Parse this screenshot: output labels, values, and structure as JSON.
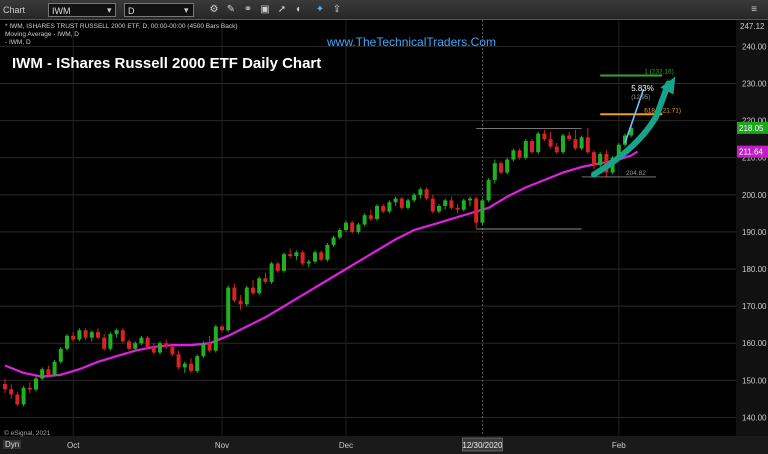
{
  "toolbar": {
    "app_label": "Chart",
    "symbol": "IWM",
    "interval": "D",
    "icons": [
      "gear-icon",
      "pencil-icon",
      "link-icon",
      "image-icon",
      "arrow-icon",
      "hide-icon",
      "twitter-icon",
      "share-icon",
      "menu-icon"
    ]
  },
  "chart_info": {
    "line1": "* IWM, ISHARES TRUST RUSSELL 2000 ETF, D, 00:00-00:00 (4500 Bars Back)",
    "line2": "Moving Average - IWM, D",
    "line3": "- IWM, D"
  },
  "headline": "IWM - IShares Russell 2000 ETF Daily Chart",
  "website": "www.TheTechnicalTraders.Com",
  "footer": {
    "copyright": "© eSignal, 2021",
    "dyn_label": "Dyn"
  },
  "colors": {
    "background": "#000000",
    "up_candle": "#22b022",
    "down_candle": "#d42424",
    "moving_average": "#e020e0",
    "projection_arrow": "#17a48a",
    "fib_1": "#2fa82f",
    "fib_618": "#f39c12",
    "current_price_label": "#1fa51f",
    "ma_price_label": "#c21ec2"
  },
  "chart_data": {
    "type": "candlestick",
    "y_axis": {
      "min": 135,
      "max": 247.12,
      "ticks": [
        140,
        150,
        160,
        170,
        180,
        190,
        200,
        210,
        220,
        230,
        240
      ],
      "top_label": "247.12"
    },
    "x_axis": {
      "labels": [
        {
          "label": "Oct",
          "bar": 11
        },
        {
          "label": "Nov",
          "bar": 35
        },
        {
          "label": "Dec",
          "bar": 55
        },
        {
          "label": "Feb",
          "bar": 99
        },
        {
          "label": "12/30/2020",
          "bar": 77,
          "highlight": true
        }
      ],
      "total_bars": 118
    },
    "price_labels": {
      "current": "218.05",
      "current_value": 218.05,
      "ma": "211.64",
      "ma_value": 211.64
    },
    "candles": [
      [
        149,
        150.5,
        146.5,
        147.6
      ],
      [
        147.6,
        149,
        145,
        146.2
      ],
      [
        146.2,
        146.8,
        143,
        143.5
      ],
      [
        143.5,
        148.5,
        143,
        148
      ],
      [
        148,
        149.5,
        146.5,
        147.5
      ],
      [
        147.5,
        151,
        147,
        150.5
      ],
      [
        150.5,
        153.5,
        150,
        153
      ],
      [
        153,
        154,
        151,
        151.5
      ],
      [
        151.5,
        155.5,
        151,
        155
      ],
      [
        155,
        159,
        154.5,
        158.5
      ],
      [
        158.5,
        162.5,
        158,
        162
      ],
      [
        162,
        163,
        160.5,
        161
      ],
      [
        161,
        164,
        160.5,
        163.5
      ],
      [
        163.5,
        164,
        161,
        161.5
      ],
      [
        161.5,
        163.5,
        160.5,
        163
      ],
      [
        163,
        164,
        161,
        161.5
      ],
      [
        161.5,
        162.5,
        158,
        158.5
      ],
      [
        158.5,
        163,
        158,
        162.5
      ],
      [
        162.5,
        164,
        161.5,
        163.5
      ],
      [
        163.5,
        164,
        160,
        160.5
      ],
      [
        160.5,
        161,
        158,
        158.5
      ],
      [
        158.5,
        160.5,
        158,
        160
      ],
      [
        160,
        162,
        159.5,
        161.5
      ],
      [
        161.5,
        162,
        158.5,
        159
      ],
      [
        159,
        160,
        157,
        157.5
      ],
      [
        157.5,
        160.5,
        157,
        160
      ],
      [
        160,
        161,
        158.5,
        159
      ],
      [
        159,
        159.5,
        156.5,
        157
      ],
      [
        157,
        158,
        153,
        153.5
      ],
      [
        153.5,
        155,
        152,
        154.5
      ],
      [
        154.5,
        156,
        152,
        152.5
      ],
      [
        152.5,
        157,
        152,
        156.5
      ],
      [
        156.5,
        160.5,
        156,
        160
      ],
      [
        160,
        162,
        157.5,
        158
      ],
      [
        158,
        165,
        157.5,
        164.5
      ],
      [
        164.5,
        165,
        163,
        163.5
      ],
      [
        163.5,
        175.5,
        163,
        175
      ],
      [
        175,
        176,
        171,
        171.5
      ],
      [
        171.5,
        173,
        169,
        170.5
      ],
      [
        170.5,
        175.5,
        170,
        175
      ],
      [
        175,
        177,
        173,
        173.5
      ],
      [
        173.5,
        178,
        173,
        177.5
      ],
      [
        177.5,
        179,
        176,
        176.5
      ],
      [
        176.5,
        182,
        176,
        181.5
      ],
      [
        181.5,
        182,
        179,
        179.5
      ],
      [
        179.5,
        184.5,
        179,
        184
      ],
      [
        184,
        185.5,
        183,
        183.5
      ],
      [
        183.5,
        185,
        182.5,
        184.5
      ],
      [
        184.5,
        185,
        181,
        181.5
      ],
      [
        181.5,
        182.5,
        180.5,
        182
      ],
      [
        182,
        185,
        181.5,
        184.5
      ],
      [
        184.5,
        185,
        182,
        182.5
      ],
      [
        182.5,
        187,
        182,
        186.5
      ],
      [
        186.5,
        189,
        186,
        188.5
      ],
      [
        188.5,
        191,
        188,
        190.5
      ],
      [
        190.5,
        193,
        190,
        192.5
      ],
      [
        192.5,
        193,
        189.5,
        190
      ],
      [
        190,
        192.5,
        189.5,
        192
      ],
      [
        192,
        195,
        191.5,
        194.5
      ],
      [
        194.5,
        196,
        193,
        193.5
      ],
      [
        193.5,
        197.5,
        193,
        197
      ],
      [
        197,
        197.5,
        195,
        195.5
      ],
      [
        195.5,
        198.5,
        195,
        198
      ],
      [
        198,
        199.5,
        197,
        199
      ],
      [
        199,
        199.5,
        196,
        196.5
      ],
      [
        196.5,
        199,
        196,
        198.5
      ],
      [
        198.5,
        200.5,
        198,
        200
      ],
      [
        200,
        202,
        199,
        201.5
      ],
      [
        201.5,
        202,
        198.5,
        199
      ],
      [
        199,
        200,
        195,
        195.5
      ],
      [
        195.5,
        197.5,
        195,
        197
      ],
      [
        197,
        199,
        196,
        198.5
      ],
      [
        198.5,
        199.5,
        196,
        196.5
      ],
      [
        196.5,
        197.5,
        195,
        196
      ],
      [
        196,
        199,
        195.5,
        198.5
      ],
      [
        198.5,
        199.5,
        197,
        199
      ],
      [
        199,
        199.5,
        191,
        192.5
      ],
      [
        192.5,
        199,
        192,
        198.5
      ],
      [
        198.5,
        204.5,
        198,
        204
      ],
      [
        204,
        209.5,
        203,
        208.5
      ],
      [
        208.5,
        209,
        205.5,
        206
      ],
      [
        206,
        210,
        205.5,
        209.5
      ],
      [
        209.5,
        212.5,
        209,
        212
      ],
      [
        212,
        212.5,
        209.5,
        210
      ],
      [
        210,
        215,
        209.5,
        214.5
      ],
      [
        214.5,
        215,
        211,
        211.5
      ],
      [
        211.5,
        217,
        211,
        216.5
      ],
      [
        216.5,
        217.5,
        214.5,
        215
      ],
      [
        215,
        217,
        212.5,
        213
      ],
      [
        213,
        214,
        211,
        211.5
      ],
      [
        211.5,
        216.5,
        211,
        216
      ],
      [
        216,
        217,
        214.5,
        215
      ],
      [
        215,
        217.5,
        212,
        212.5
      ],
      [
        212.5,
        216,
        212,
        215.5
      ],
      [
        215.5,
        218,
        211,
        211.5
      ],
      [
        211.5,
        212,
        207,
        208
      ],
      [
        208,
        211.5,
        207.5,
        211
      ],
      [
        211,
        212,
        204.8,
        206
      ],
      [
        206,
        210.5,
        205.5,
        210
      ],
      [
        210,
        214,
        209.5,
        213.5
      ],
      [
        213.5,
        216.5,
        213,
        216
      ],
      [
        216,
        219,
        215.5,
        218.05
      ]
    ],
    "moving_average": [
      [
        0,
        154
      ],
      [
        3,
        152
      ],
      [
        6,
        151
      ],
      [
        9,
        151.5
      ],
      [
        12,
        153
      ],
      [
        15,
        155
      ],
      [
        18,
        156.5
      ],
      [
        21,
        158
      ],
      [
        24,
        159
      ],
      [
        27,
        159.5
      ],
      [
        30,
        159.5
      ],
      [
        33,
        160
      ],
      [
        36,
        162
      ],
      [
        39,
        164.5
      ],
      [
        42,
        167
      ],
      [
        45,
        170
      ],
      [
        48,
        173
      ],
      [
        51,
        176
      ],
      [
        54,
        179
      ],
      [
        57,
        182
      ],
      [
        60,
        185
      ],
      [
        63,
        188
      ],
      [
        66,
        190.5
      ],
      [
        69,
        192
      ],
      [
        72,
        193.5
      ],
      [
        75,
        195
      ],
      [
        78,
        196.5
      ],
      [
        81,
        199.5
      ],
      [
        84,
        202
      ],
      [
        87,
        204
      ],
      [
        90,
        206
      ],
      [
        93,
        207.5
      ],
      [
        96,
        208.5
      ],
      [
        99,
        209.5
      ],
      [
        101,
        210.6
      ],
      [
        102,
        211.64
      ]
    ],
    "fib_levels": [
      {
        "label": "1 (232.16)",
        "value": 232.16,
        "from_bar": 96,
        "to_bar": 106,
        "color": "#2fa82f"
      },
      {
        "label": "618 (221.71)",
        "value": 221.71,
        "from_bar": 96,
        "to_bar": 106,
        "color": "#f39c12"
      }
    ],
    "range_lines": [
      {
        "value": 217.9,
        "from_bar": 76,
        "to_bar": 93
      },
      {
        "value": 204.82,
        "from_bar": 93,
        "to_bar": 105,
        "label": "204.82"
      },
      {
        "value": 190.8,
        "from_bar": 76,
        "to_bar": 93
      }
    ],
    "annotations": {
      "percent": "5.83%",
      "small_value": "(12.95)"
    },
    "projection_arrow": [
      [
        95,
        205.5
      ],
      [
        99,
        209
      ],
      [
        102,
        212.5
      ],
      [
        105,
        221
      ],
      [
        107,
        230
      ]
    ]
  }
}
